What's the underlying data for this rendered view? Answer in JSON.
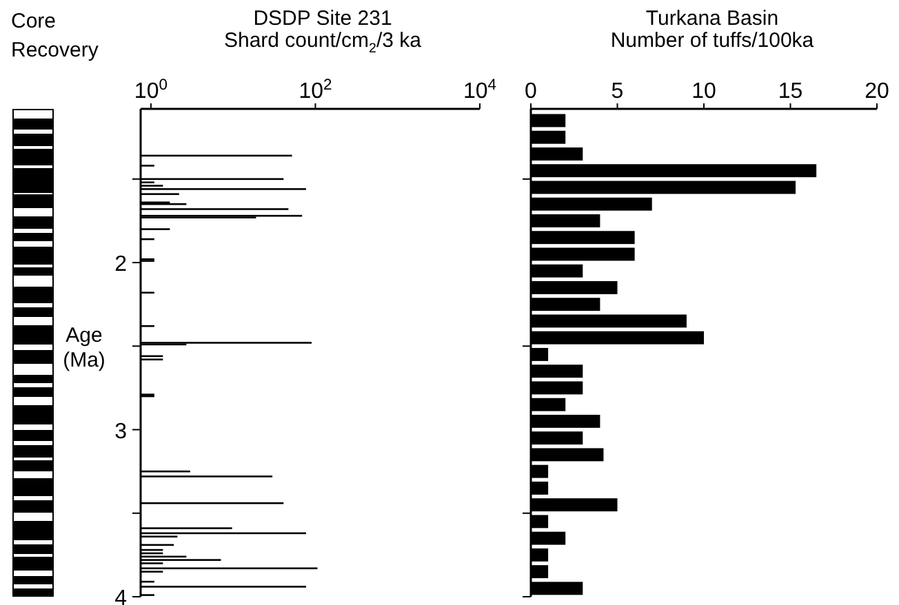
{
  "chart_data": [
    {
      "type": "other",
      "title": "Core Recovery"
    },
    {
      "type": "bar",
      "orientation": "horizontal",
      "title": "DSDP Site 231",
      "xlabel": "Shard count/cm$_{2}$/3 ka",
      "ylabel": "Age (Ma)",
      "log": "x",
      "color": "#000000",
      "x": [
        1.36,
        1.42,
        1.5,
        1.52,
        1.54,
        1.56,
        1.59,
        1.64,
        1.65,
        1.68,
        1.72,
        1.73,
        1.8,
        1.86,
        1.98,
        1.99,
        2.18,
        2.38,
        2.48,
        2.49,
        2.56,
        2.58,
        2.79,
        2.8,
        3.25,
        3.28,
        3.44,
        3.59,
        3.62,
        3.64,
        3.69,
        3.72,
        3.74,
        3.76,
        3.78,
        3.8,
        3.83,
        3.85,
        3.91,
        3.94,
        3.99
      ],
      "values": [
        52,
        1.1,
        41,
        1.1,
        1.4,
        77,
        2.2,
        1.7,
        2.7,
        47,
        69,
        19,
        1.7,
        1.1,
        1.1,
        1.1,
        1.1,
        1.1,
        90,
        2.7,
        1.4,
        1.4,
        1.1,
        1.1,
        3,
        30,
        41,
        9.7,
        77,
        2.1,
        1.9,
        1.4,
        1.4,
        2.7,
        7.1,
        1.4,
        106,
        1.4,
        1.1,
        77,
        1.1
      ],
      "xlim": [
        0.75,
        10000
      ],
      "xticks": [
        {
          "value": 1,
          "label": "10$^{0}$"
        },
        {
          "value": 100,
          "label": "10$^{2}$"
        },
        {
          "value": 10000,
          "label": "10$^{4}$"
        }
      ],
      "ylim": [
        4.0,
        1.08
      ],
      "yticks": [
        {
          "value": 1.5,
          "label": null
        },
        2,
        {
          "value": 2.5,
          "label": null
        },
        3,
        {
          "value": 3.5,
          "label": null
        },
        4
      ]
    },
    {
      "type": "bar",
      "orientation": "horizontal",
      "title": "Turkana Basin",
      "xlabel": "Number of tuffs/100ka",
      "color": "#000000",
      "tick_labels": "x",
      "x": [
        1.15,
        1.25,
        1.35,
        1.45,
        1.55,
        1.65,
        1.75,
        1.85,
        1.95,
        2.05,
        2.15,
        2.25,
        2.35,
        2.45,
        2.55,
        2.65,
        2.75,
        2.85,
        2.95,
        3.05,
        3.15,
        3.25,
        3.35,
        3.45,
        3.55,
        3.65,
        3.75,
        3.85,
        3.95
      ],
      "values": [
        2,
        2,
        3,
        16.5,
        15.3,
        7,
        4,
        6,
        6,
        3,
        5,
        4,
        9,
        10,
        1,
        3,
        3,
        2,
        4,
        3,
        4.2,
        1,
        1,
        5,
        1,
        2,
        1,
        1,
        3
      ],
      "xlim": [
        0,
        20
      ],
      "xticks": [
        0,
        5,
        10,
        15,
        20
      ],
      "ylim": [
        4.0,
        1.08
      ],
      "yticks": [
        {
          "value": 1.5,
          "label": null
        },
        {
          "value": 2.5,
          "label": null
        },
        {
          "value": 3.5,
          "label": null
        },
        {
          "value": 4,
          "label": null
        }
      ]
    }
  ]
}
